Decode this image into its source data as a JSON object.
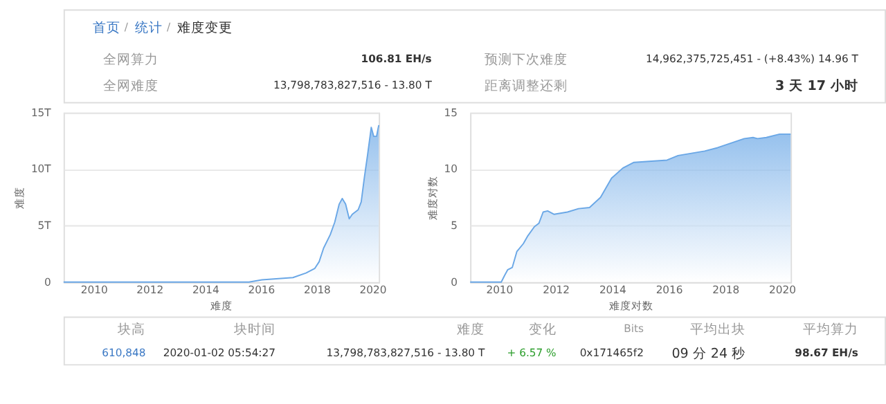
{
  "chart_data": [
    {
      "type": "other",
      "annotations": [
        "首页",
        "/",
        "统计",
        "/",
        "难度变更",
        "全网算力",
        "106.81 EH/s",
        "全网难度",
        "13,798,783,827,516 - 13.80 T",
        "预测下次难度",
        "14,962,375,725,451 - (+8.43%) 14.96 T",
        "距离调整还剩",
        "3 天 17 小时"
      ]
    },
    {
      "type": "area",
      "xlabel": "难度",
      "ylabel": "难度",
      "color": "#6aa7e6",
      "grid": "y",
      "xlim": [
        2008.92,
        2020.23
      ],
      "xticks": [
        2010,
        2012,
        2014,
        2016,
        2018,
        2020
      ],
      "ylim": [
        0,
        15
      ],
      "yticks": [
        0,
        {
          "value": 5,
          "label": "5T"
        },
        {
          "value": 10,
          "label": "10T"
        },
        {
          "value": 15,
          "label": "15T"
        }
      ],
      "x": [
        2008.92,
        2015.57,
        2016.04,
        2017.15,
        2017.62,
        2017.93,
        2018.09,
        2018.25,
        2018.49,
        2018.65,
        2018.81,
        2018.92,
        2019.04,
        2019.17,
        2019.28,
        2019.49,
        2019.6,
        2019.71,
        2019.83,
        2019.96,
        2020.05,
        2020.15,
        2020.23
      ],
      "values": [
        0,
        0,
        0.2,
        0.4,
        0.8,
        1.2,
        1.8,
        3.0,
        4.2,
        5.3,
        6.9,
        7.4,
        6.9,
        5.6,
        6.0,
        6.4,
        7.1,
        9.2,
        11.3,
        13.7,
        12.9,
        12.9,
        13.9
      ]
    },
    {
      "type": "area",
      "xlabel": "难度对数",
      "ylabel": "难度对数",
      "color": "#6aa7e6",
      "grid": "y",
      "xlim": [
        2008.98,
        2020.31
      ],
      "xticks": [
        2010,
        2012,
        2014,
        2016,
        2018,
        2020
      ],
      "ylim": [
        0,
        15
      ],
      "yticks": [
        0,
        5,
        10,
        15
      ],
      "x": [
        2008.98,
        2010.08,
        2010.2,
        2010.31,
        2010.47,
        2010.63,
        2010.86,
        2011.02,
        2011.25,
        2011.41,
        2011.56,
        2011.72,
        2011.95,
        2012.42,
        2012.81,
        2013.2,
        2013.59,
        2013.98,
        2014.38,
        2014.77,
        2015.39,
        2015.94,
        2016.33,
        2016.8,
        2017.27,
        2017.73,
        2018.2,
        2018.67,
        2018.98,
        2019.14,
        2019.45,
        2019.92,
        2020.31
      ],
      "values": [
        0,
        0,
        0.6,
        1.1,
        1.3,
        2.7,
        3.4,
        4.1,
        4.9,
        5.2,
        6.2,
        6.3,
        6.0,
        6.2,
        6.5,
        6.6,
        7.5,
        9.2,
        10.1,
        10.6,
        10.7,
        10.8,
        11.2,
        11.4,
        11.6,
        11.9,
        12.3,
        12.7,
        12.8,
        12.7,
        12.8,
        13.1,
        13.1
      ]
    },
    {
      "type": "other",
      "annotations": [
        "块高",
        "块时间",
        "难度",
        "变化",
        "Bits",
        "平均出块",
        "平均算力",
        "610,848",
        "2020-01-02 05:54:27",
        "13,798,783,827,516 - 13.80 T",
        "+ 6.57 %",
        "0x171465f2",
        "09 分 24 秒",
        "98.67 EH/s"
      ]
    }
  ]
}
